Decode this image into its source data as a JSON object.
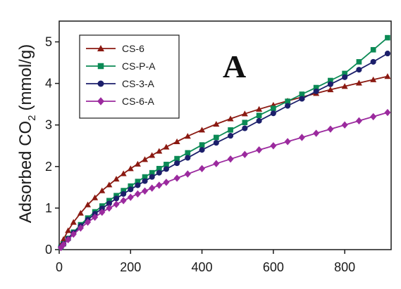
{
  "chart_data": {
    "type": "line",
    "panel_label": "A",
    "ylabel": "Adsorbed CO",
    "ylabel_subscript": "2",
    "ylabel_unit": "(mmol/g)",
    "xlim": [
      0,
      930
    ],
    "ylim": [
      0,
      5.5
    ],
    "x_ticks": [
      0,
      200,
      400,
      600,
      800
    ],
    "y_ticks": [
      0,
      1,
      2,
      3,
      4,
      5
    ],
    "grid": false,
    "legend_position": "top-left",
    "series": [
      {
        "name": "CS-6",
        "color": "#8b1a12",
        "marker": "triangle",
        "x": [
          5,
          12,
          25,
          40,
          60,
          80,
          100,
          120,
          140,
          160,
          180,
          200,
          220,
          240,
          260,
          280,
          300,
          330,
          360,
          400,
          440,
          480,
          520,
          560,
          600,
          640,
          680,
          720,
          760,
          800,
          840,
          880,
          920
        ],
        "y": [
          0.12,
          0.25,
          0.46,
          0.66,
          0.88,
          1.08,
          1.25,
          1.42,
          1.56,
          1.7,
          1.83,
          1.95,
          2.06,
          2.17,
          2.27,
          2.37,
          2.47,
          2.6,
          2.73,
          2.88,
          3.02,
          3.15,
          3.27,
          3.38,
          3.48,
          3.58,
          3.67,
          3.76,
          3.85,
          3.93,
          4.01,
          4.09,
          4.17
        ]
      },
      {
        "name": "CS-P-A",
        "color": "#0b8a55",
        "marker": "square",
        "x": [
          5,
          12,
          25,
          40,
          60,
          80,
          100,
          120,
          140,
          160,
          180,
          200,
          220,
          240,
          260,
          280,
          300,
          330,
          360,
          400,
          440,
          480,
          520,
          560,
          600,
          640,
          680,
          720,
          760,
          800,
          840,
          880,
          920
        ],
        "y": [
          0.06,
          0.14,
          0.27,
          0.42,
          0.6,
          0.76,
          0.91,
          1.05,
          1.18,
          1.3,
          1.42,
          1.53,
          1.64,
          1.75,
          1.85,
          1.95,
          2.05,
          2.19,
          2.33,
          2.52,
          2.7,
          2.88,
          3.06,
          3.23,
          3.4,
          3.57,
          3.74,
          3.9,
          4.07,
          4.24,
          4.52,
          4.81,
          5.1
        ]
      },
      {
        "name": "CS-3-A",
        "color": "#1c1f6b",
        "marker": "circle",
        "x": [
          5,
          12,
          25,
          40,
          60,
          80,
          100,
          120,
          140,
          160,
          180,
          200,
          220,
          240,
          260,
          280,
          300,
          330,
          360,
          400,
          440,
          480,
          520,
          560,
          600,
          640,
          680,
          720,
          760,
          800,
          840,
          880,
          920
        ],
        "y": [
          0.06,
          0.13,
          0.26,
          0.4,
          0.57,
          0.72,
          0.86,
          0.99,
          1.11,
          1.23,
          1.34,
          1.45,
          1.55,
          1.65,
          1.75,
          1.85,
          1.94,
          2.08,
          2.21,
          2.4,
          2.57,
          2.74,
          2.92,
          3.1,
          3.28,
          3.46,
          3.63,
          3.81,
          3.98,
          4.15,
          4.33,
          4.52,
          4.72
        ]
      },
      {
        "name": "CS-6-A",
        "color": "#9b2a9e",
        "marker": "diamond",
        "x": [
          5,
          12,
          25,
          40,
          60,
          80,
          100,
          120,
          140,
          160,
          180,
          200,
          220,
          240,
          260,
          280,
          300,
          330,
          360,
          400,
          440,
          480,
          520,
          560,
          600,
          640,
          680,
          720,
          760,
          800,
          840,
          880,
          920
        ],
        "y": [
          0.05,
          0.12,
          0.24,
          0.37,
          0.52,
          0.66,
          0.78,
          0.9,
          1.0,
          1.09,
          1.18,
          1.26,
          1.34,
          1.41,
          1.48,
          1.55,
          1.62,
          1.72,
          1.82,
          1.95,
          2.07,
          2.18,
          2.29,
          2.4,
          2.5,
          2.6,
          2.7,
          2.8,
          2.9,
          3.0,
          3.1,
          3.2,
          3.3
        ]
      }
    ]
  }
}
